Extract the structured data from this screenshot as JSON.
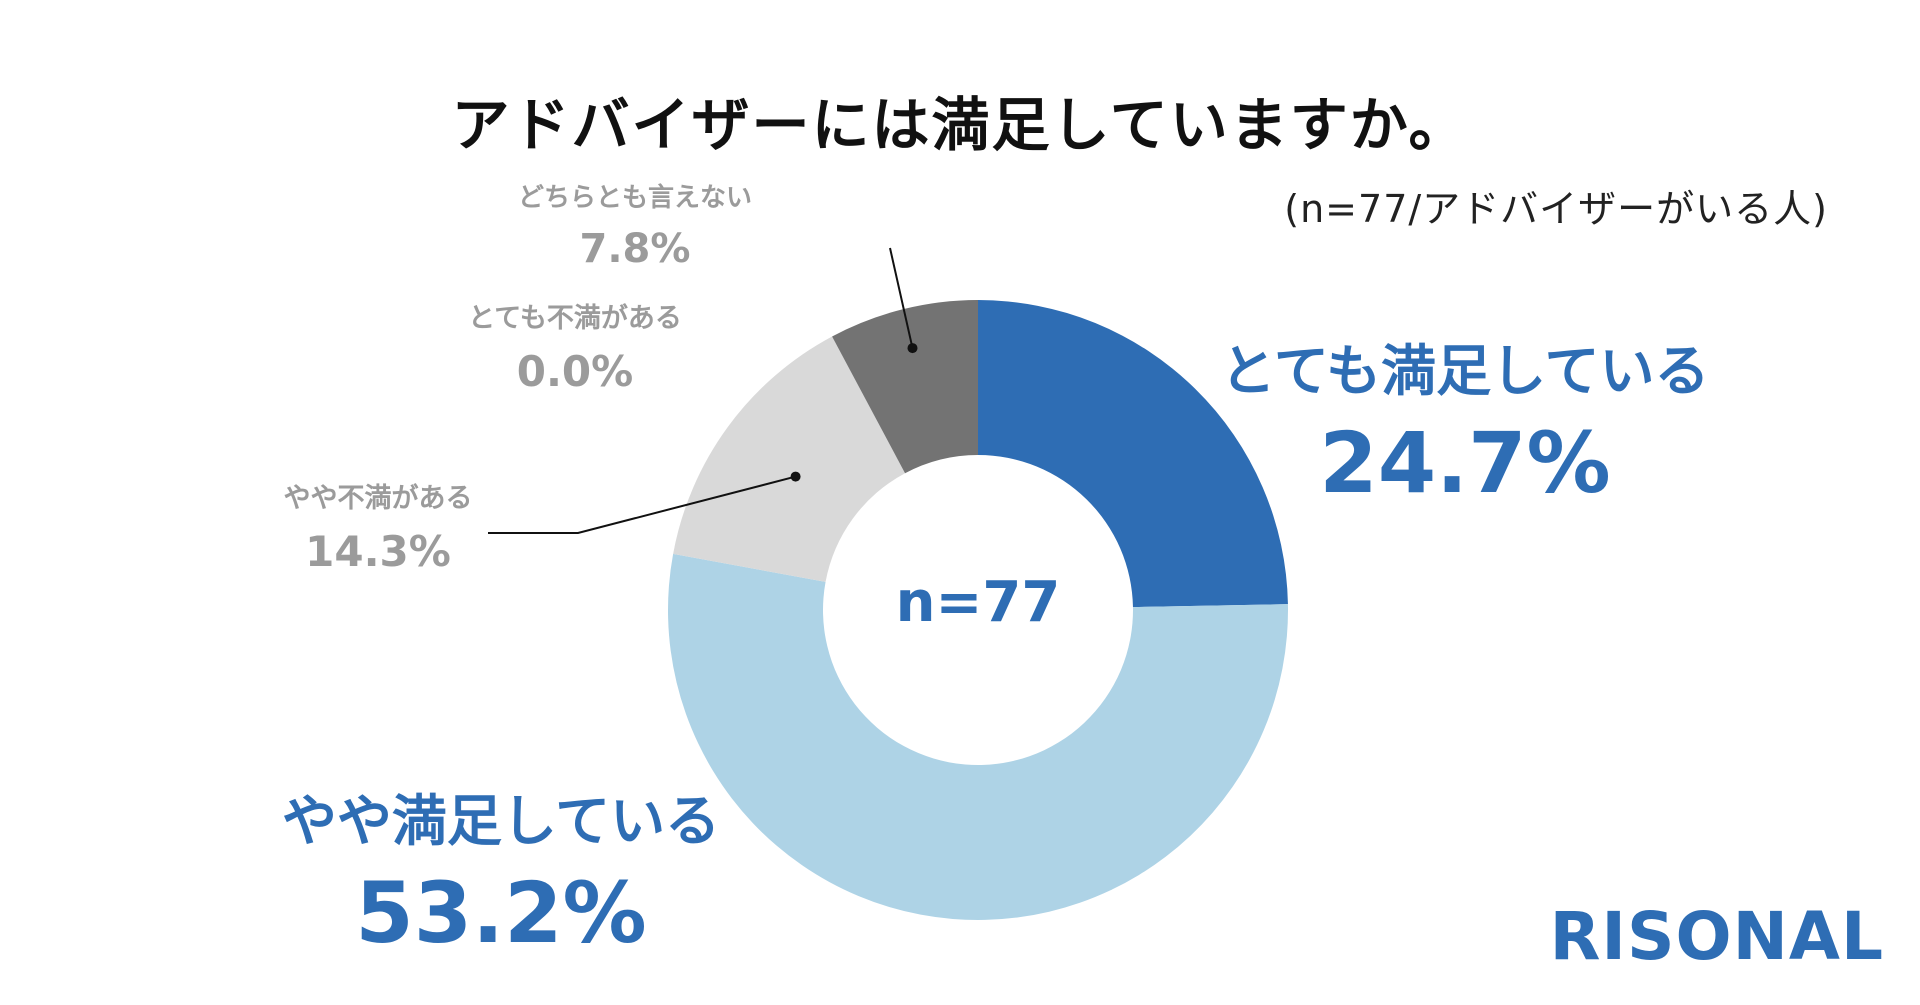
{
  "chart_data": {
    "type": "pie",
    "variant": "donut",
    "title": "アドバイザーには満足していますか。",
    "sample_note": "(n=77/アドバイザーがいる人)",
    "center_label": "n=77",
    "slices": [
      {
        "label": "とても満足している",
        "value": 24.7,
        "value_label": "24.7%",
        "color": "#2e6db4"
      },
      {
        "label": "やや満足している",
        "value": 53.2,
        "value_label": "53.2%",
        "color": "#aed3e6"
      },
      {
        "label": "やや不満がある",
        "value": 14.3,
        "value_label": "14.3%",
        "color": "#d9d9d9"
      },
      {
        "label": "とても不満がある",
        "value": 0.0,
        "value_label": "0.0%",
        "color": "#d9d9d9"
      },
      {
        "label": "どちらとも言えない",
        "value": 7.8,
        "value_label": "7.8%",
        "color": "#737373"
      }
    ]
  },
  "brand": "RISONAL"
}
